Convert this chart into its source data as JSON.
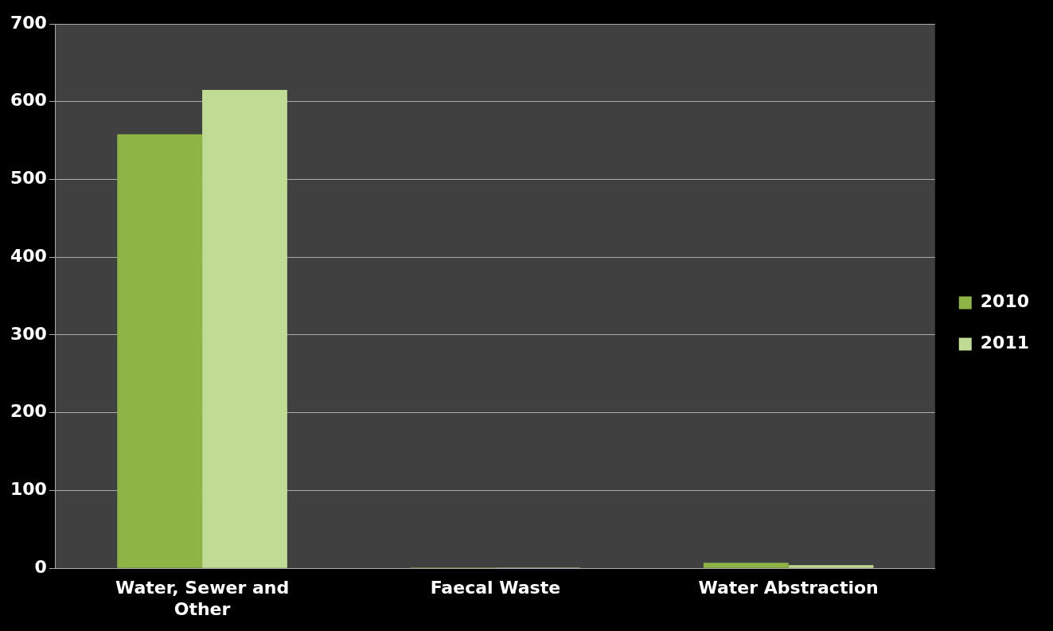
{
  "chart_data": {
    "type": "bar",
    "categories": [
      "Water, Sewer and Other",
      "Faecal Waste",
      "Water Abstraction"
    ],
    "series": [
      {
        "name": "2010",
        "color": "#8db444",
        "values": [
          558,
          1,
          7
        ]
      },
      {
        "name": "2011",
        "color": "#c0dc94",
        "values": [
          615,
          1,
          4
        ]
      }
    ],
    "ylim": [
      0,
      700
    ],
    "yticks": [
      0,
      100,
      200,
      300,
      400,
      500,
      600,
      700
    ],
    "grid": "y",
    "legend": "right"
  }
}
